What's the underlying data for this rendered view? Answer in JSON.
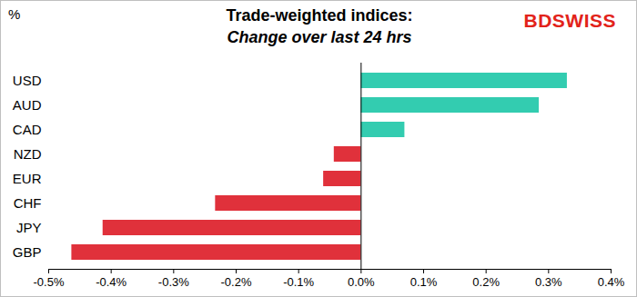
{
  "chart_data": {
    "type": "bar",
    "orientation": "horizontal",
    "title": "Trade-weighted indices:",
    "subtitle": "Change over last 24 hrs",
    "logo": "BDSWISS",
    "ylabel": "%",
    "categories": [
      "USD",
      "AUD",
      "CAD",
      "NZD",
      "EUR",
      "CHF",
      "JPY",
      "GBP"
    ],
    "values": [
      0.33,
      0.285,
      0.07,
      -0.043,
      -0.06,
      -0.233,
      -0.413,
      -0.463
    ],
    "colors": [
      "#33ccb0",
      "#33ccb0",
      "#33ccb0",
      "#e0313b",
      "#e0313b",
      "#e0313b",
      "#e0313b",
      "#e0313b"
    ],
    "xlim": [
      -0.5,
      0.4
    ],
    "xticks": [
      {
        "value": -0.5,
        "label": "-0.5%"
      },
      {
        "value": -0.4,
        "label": "-0.4%"
      },
      {
        "value": -0.3,
        "label": "-0.3%"
      },
      {
        "value": -0.2,
        "label": "-0.2%"
      },
      {
        "value": -0.1,
        "label": "-0.1%"
      },
      {
        "value": 0,
        "label": "0.0%"
      },
      {
        "value": 0.1,
        "label": "0.1%"
      },
      {
        "value": 0.2,
        "label": "0.2%"
      },
      {
        "value": 0.3,
        "label": "0.3%"
      },
      {
        "value": 0.4,
        "label": "0.4%"
      }
    ],
    "grid": false
  }
}
